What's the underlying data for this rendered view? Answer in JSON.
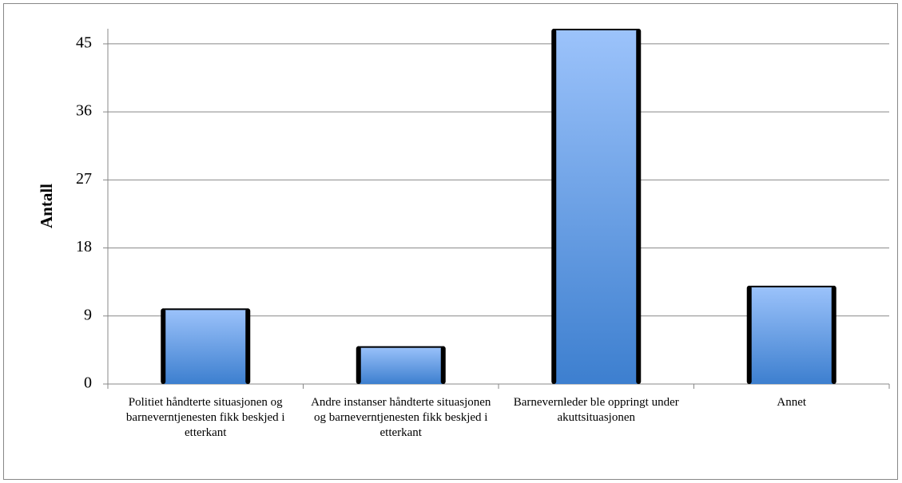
{
  "chart_data": {
    "type": "bar",
    "y_label": "Antall",
    "categories": [
      "Politiet håndterte situasjonen og barneverntjenesten fikk beskjed i etterkant",
      "Andre instanser håndterte situasjonen og barneverntjenesten fikk beskjed i etterkant",
      "Barnevernleder ble oppringt under akuttsituasjonen",
      "Annet"
    ],
    "values": [
      10,
      5,
      47,
      13
    ],
    "color": "#4a86d0",
    "ylim": [
      0,
      47
    ],
    "yticks": [
      0,
      9,
      18,
      27,
      36,
      45
    ],
    "grid": true
  }
}
